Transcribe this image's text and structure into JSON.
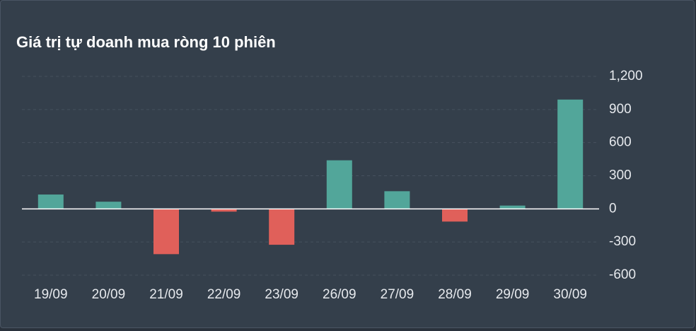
{
  "chart_data": {
    "type": "bar",
    "title": "Giá trị tự doanh mua ròng 10 phiên",
    "categories": [
      "19/09",
      "20/09",
      "21/09",
      "22/09",
      "23/09",
      "26/09",
      "27/09",
      "28/09",
      "29/09",
      "30/09"
    ],
    "values": [
      130,
      65,
      -410,
      -25,
      -325,
      440,
      160,
      -115,
      30,
      990
    ],
    "positive_color": "#52a69a",
    "negative_color": "#e0605a",
    "ylim": [
      -600,
      1200
    ],
    "yticks": [
      {
        "value": 1200,
        "label": "1,200"
      },
      900,
      600,
      300,
      0,
      -300,
      -600
    ],
    "grid": true
  }
}
